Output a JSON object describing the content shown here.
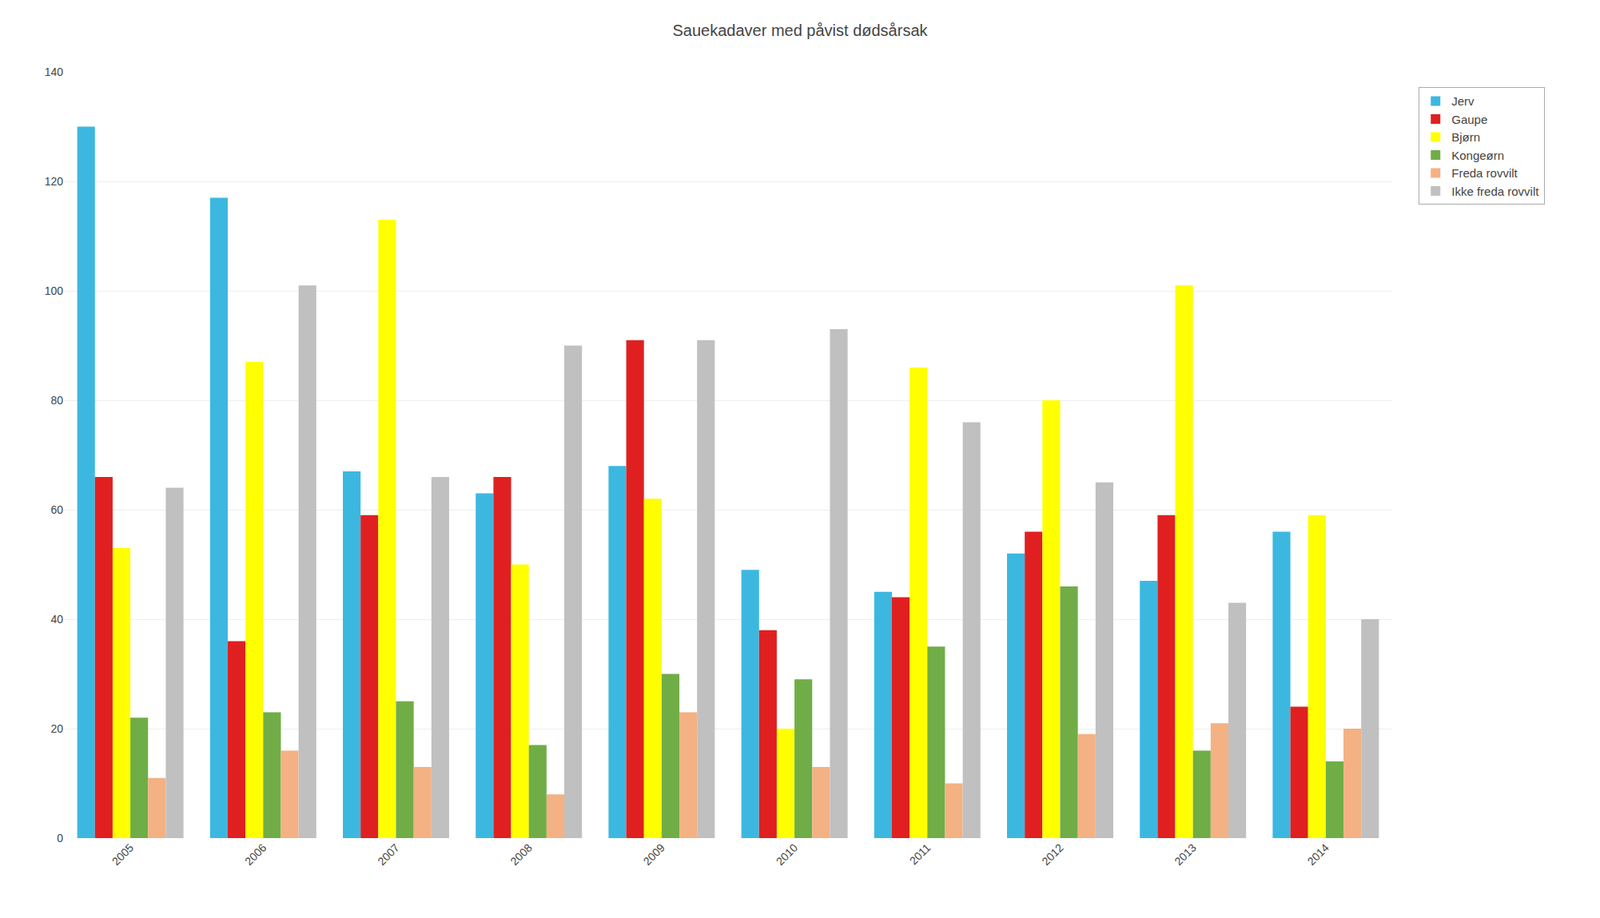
{
  "chart_data": {
    "type": "bar",
    "title": "Sauekadaver med påvist dødsårsak",
    "categories": [
      "2005",
      "2006",
      "2007",
      "2008",
      "2009",
      "2010",
      "2011",
      "2012",
      "2013",
      "2014"
    ],
    "series": [
      {
        "name": "Jerv",
        "color": "#3cb8e0",
        "values": [
          130,
          117,
          67,
          63,
          68,
          49,
          45,
          52,
          47,
          56
        ]
      },
      {
        "name": "Gaupe",
        "color": "#e02020",
        "values": [
          66,
          36,
          59,
          66,
          91,
          38,
          44,
          56,
          59,
          24
        ]
      },
      {
        "name": "Bjørn",
        "color": "#ffff00",
        "values": [
          53,
          87,
          113,
          50,
          62,
          20,
          86,
          80,
          101,
          59
        ]
      },
      {
        "name": "Kongeørn",
        "color": "#70ad47",
        "values": [
          22,
          23,
          25,
          17,
          30,
          29,
          35,
          46,
          16,
          14
        ]
      },
      {
        "name": "Freda rovvilt",
        "color": "#f4b183",
        "values": [
          11,
          16,
          13,
          8,
          23,
          13,
          10,
          19,
          21,
          20
        ]
      },
      {
        "name": "Ikke freda rovvilt",
        "color": "#c0c0c0",
        "values": [
          64,
          101,
          66,
          90,
          91,
          93,
          76,
          65,
          43,
          40
        ]
      }
    ],
    "ylim": [
      0,
      140
    ],
    "yticks": [
      0,
      20,
      40,
      60,
      80,
      100,
      120,
      140
    ],
    "grid": true,
    "legend": "right"
  }
}
